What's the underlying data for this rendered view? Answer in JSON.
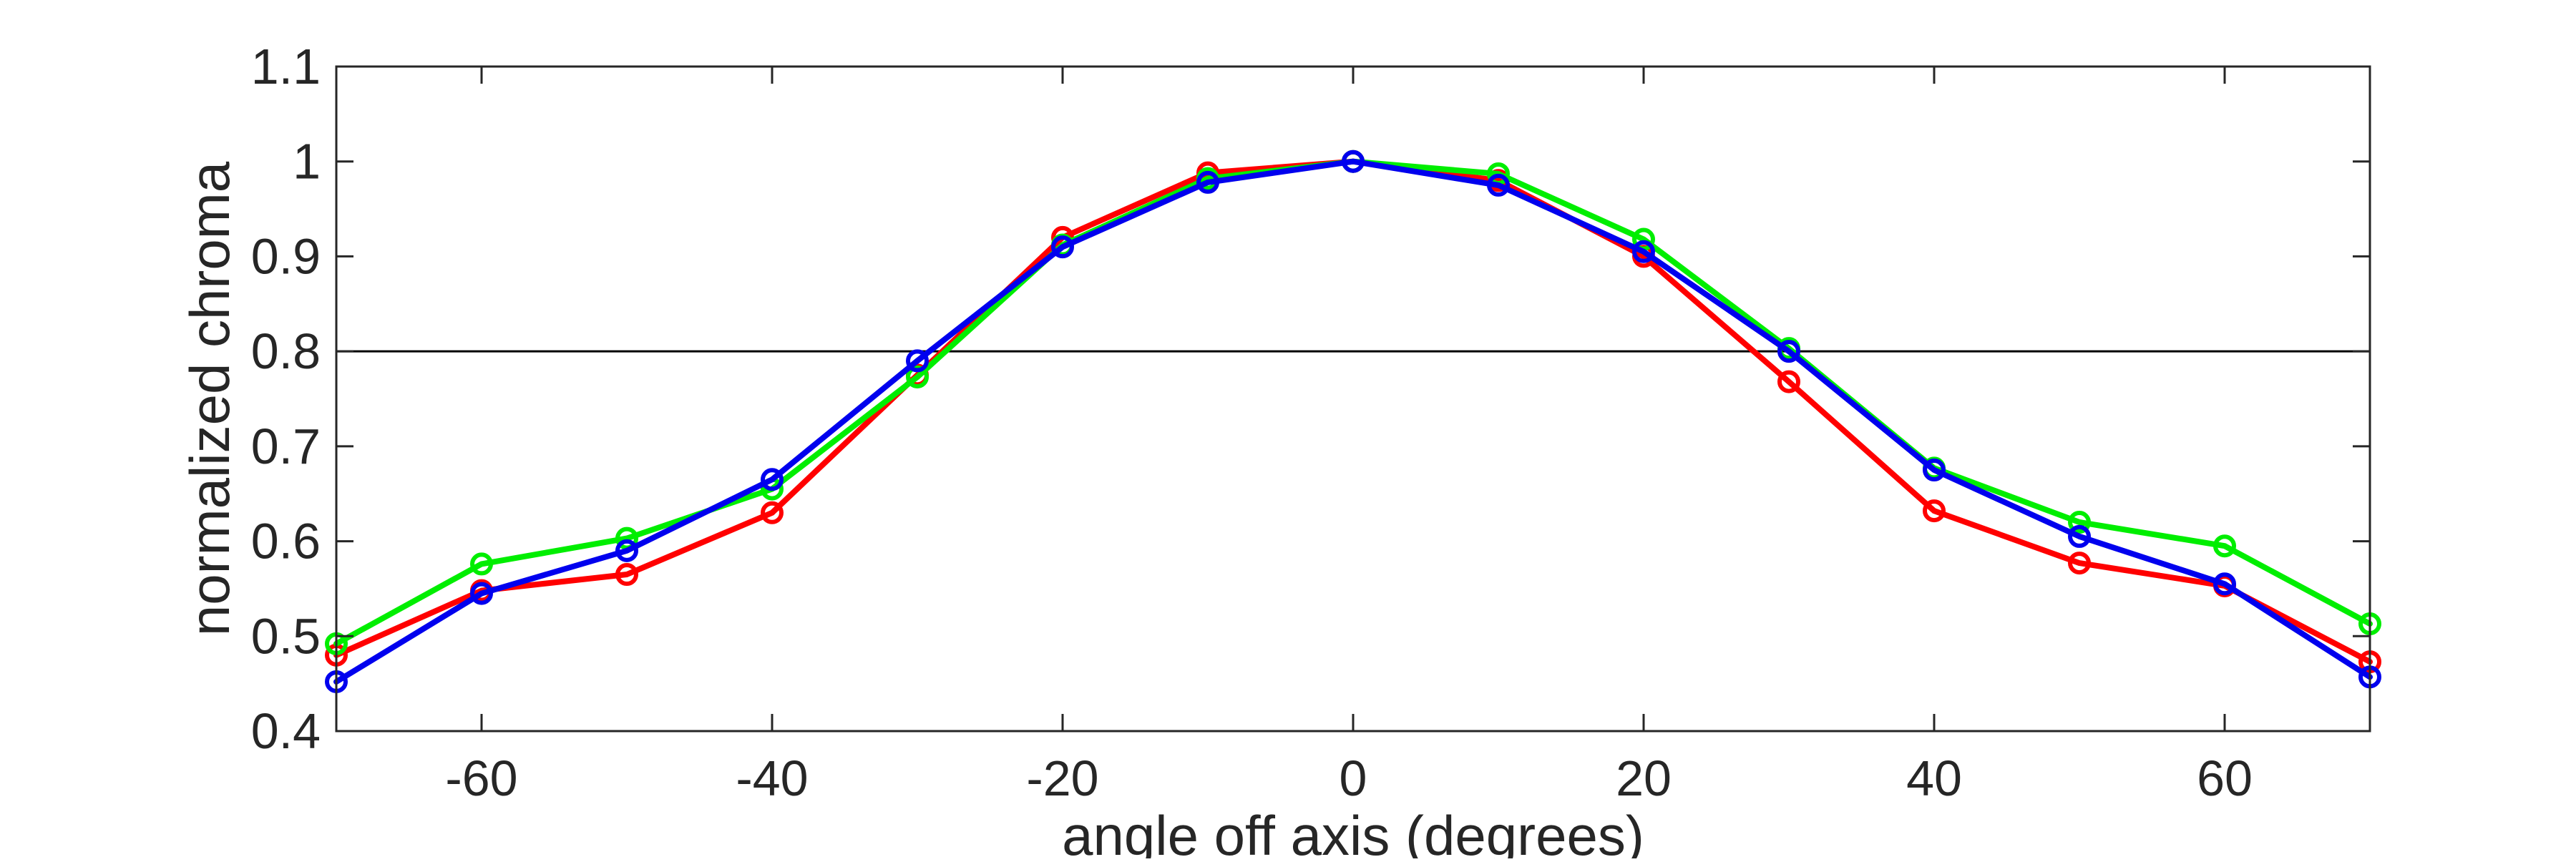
{
  "chart_data": {
    "type": "line",
    "title": "",
    "xlabel": "angle off axis (degrees)",
    "ylabel": "normalized chroma",
    "xlim": [
      -70,
      70
    ],
    "ylim": [
      0.4,
      1.1
    ],
    "xticks": [
      -60,
      -40,
      -20,
      0,
      20,
      40,
      60
    ],
    "xtick_labels": [
      "-60",
      "-40",
      "-20",
      "0",
      "20",
      "40",
      "60"
    ],
    "yticks": [
      0.4,
      0.5,
      0.6,
      0.7,
      0.8,
      0.9,
      1.0,
      1.1
    ],
    "ytick_labels": [
      "0.4",
      "0.5",
      "0.6",
      "0.7",
      "0.8",
      "0.9",
      "1",
      "1.1"
    ],
    "grid": false,
    "legend": "none",
    "threshold": {
      "y": 0.8,
      "color": "#000000"
    },
    "marker": "circle",
    "x": [
      -70,
      -60,
      -50,
      -40,
      -30,
      -20,
      -10,
      0,
      10,
      20,
      30,
      40,
      50,
      60,
      70
    ],
    "series": [
      {
        "color": "#ff0000",
        "values": [
          0.48,
          0.548,
          0.565,
          0.63,
          0.775,
          0.92,
          0.988,
          1.0,
          0.98,
          0.9,
          0.768,
          0.632,
          0.577,
          0.553,
          0.473
        ]
      },
      {
        "color": "#00ee00",
        "values": [
          0.492,
          0.576,
          0.603,
          0.655,
          0.773,
          0.912,
          0.982,
          1.0,
          0.987,
          0.918,
          0.803,
          0.677,
          0.62,
          0.595,
          0.513
        ]
      },
      {
        "color": "#0000ee",
        "values": [
          0.452,
          0.545,
          0.59,
          0.665,
          0.79,
          0.91,
          0.978,
          1.0,
          0.975,
          0.905,
          0.8,
          0.675,
          0.605,
          0.555,
          0.457
        ]
      }
    ]
  }
}
